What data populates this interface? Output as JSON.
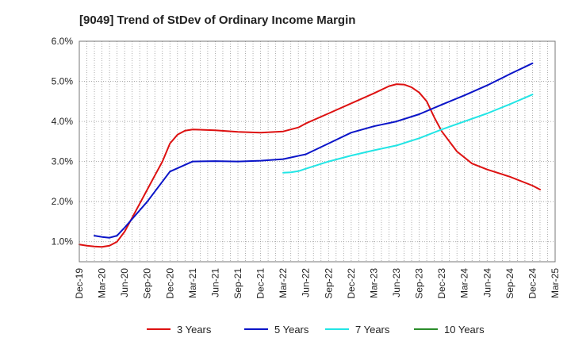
{
  "chart_data": {
    "type": "line",
    "title": "[9049]  Trend of StDev of Ordinary Income Margin",
    "xlabel": "",
    "ylabel": "",
    "x": [
      "Dec-19",
      "Mar-20",
      "Jun-20",
      "Sep-20",
      "Dec-20",
      "Mar-21",
      "Jun-21",
      "Sep-21",
      "Dec-21",
      "Mar-22",
      "Jun-22",
      "Sep-22",
      "Dec-22",
      "Mar-23",
      "Jun-23",
      "Sep-23",
      "Dec-23",
      "Mar-24",
      "Jun-24",
      "Sep-24",
      "Dec-24",
      "Mar-25"
    ],
    "ylim": [
      0.5,
      6.0
    ],
    "yticks": [
      "1.0%",
      "2.0%",
      "3.0%",
      "4.0%",
      "5.0%",
      "6.0%"
    ],
    "ytick_values": [
      1.0,
      2.0,
      3.0,
      4.0,
      5.0,
      6.0
    ],
    "grid": true,
    "legend_position": "bottom",
    "series": [
      {
        "name": "3 Years",
        "color": "#dd1111",
        "points": [
          [
            "Dec-19",
            0.93
          ],
          [
            "Jan-20",
            0.9
          ],
          [
            "Feb-20",
            0.88
          ],
          [
            "Mar-20",
            0.87
          ],
          [
            "Apr-20",
            0.9
          ],
          [
            "May-20",
            1.0
          ],
          [
            "Jun-20",
            1.25
          ],
          [
            "Jul-20",
            1.6
          ],
          [
            "Aug-20",
            1.95
          ],
          [
            "Sep-20",
            2.3
          ],
          [
            "Oct-20",
            2.65
          ],
          [
            "Nov-20",
            3.0
          ],
          [
            "Dec-20",
            3.45
          ],
          [
            "Jan-21",
            3.67
          ],
          [
            "Feb-21",
            3.77
          ],
          [
            "Mar-21",
            3.8
          ],
          [
            "Jun-21",
            3.78
          ],
          [
            "Sep-21",
            3.74
          ],
          [
            "Dec-21",
            3.72
          ],
          [
            "Mar-22",
            3.75
          ],
          [
            "May-22",
            3.85
          ],
          [
            "Jun-22",
            3.95
          ],
          [
            "Sep-22",
            4.2
          ],
          [
            "Dec-22",
            4.45
          ],
          [
            "Mar-23",
            4.7
          ],
          [
            "May-23",
            4.88
          ],
          [
            "Jun-23",
            4.93
          ],
          [
            "Jul-23",
            4.92
          ],
          [
            "Aug-23",
            4.85
          ],
          [
            "Sep-23",
            4.72
          ],
          [
            "Oct-23",
            4.5
          ],
          [
            "Nov-23",
            4.1
          ],
          [
            "Dec-23",
            3.75
          ],
          [
            "Feb-24",
            3.25
          ],
          [
            "Apr-24",
            2.95
          ],
          [
            "Jun-24",
            2.8
          ],
          [
            "Sep-24",
            2.62
          ],
          [
            "Dec-24",
            2.4
          ],
          [
            "Jan-25",
            2.3
          ]
        ]
      },
      {
        "name": "5 Years",
        "color": "#0a14c8",
        "points": [
          [
            "Feb-20",
            1.15
          ],
          [
            "Mar-20",
            1.12
          ],
          [
            "Apr-20",
            1.1
          ],
          [
            "May-20",
            1.15
          ],
          [
            "Jun-20",
            1.35
          ],
          [
            "Sep-20",
            2.0
          ],
          [
            "Dec-20",
            2.75
          ],
          [
            "Mar-21",
            3.0
          ],
          [
            "Jun-21",
            3.01
          ],
          [
            "Sep-21",
            3.0
          ],
          [
            "Dec-21",
            3.02
          ],
          [
            "Mar-22",
            3.06
          ],
          [
            "Jun-22",
            3.18
          ],
          [
            "Sep-22",
            3.45
          ],
          [
            "Dec-22",
            3.72
          ],
          [
            "Mar-23",
            3.88
          ],
          [
            "Jun-23",
            4.0
          ],
          [
            "Sep-23",
            4.18
          ],
          [
            "Dec-23",
            4.42
          ],
          [
            "Mar-24",
            4.65
          ],
          [
            "Jun-24",
            4.9
          ],
          [
            "Sep-24",
            5.18
          ],
          [
            "Dec-24",
            5.45
          ]
        ]
      },
      {
        "name": "7 Years",
        "color": "#22e5e5",
        "points": [
          [
            "Mar-22",
            2.72
          ],
          [
            "Apr-22",
            2.73
          ],
          [
            "May-22",
            2.76
          ],
          [
            "Jun-22",
            2.82
          ],
          [
            "Sep-22",
            3.0
          ],
          [
            "Dec-22",
            3.15
          ],
          [
            "Mar-23",
            3.28
          ],
          [
            "Jun-23",
            3.4
          ],
          [
            "Sep-23",
            3.58
          ],
          [
            "Dec-23",
            3.8
          ],
          [
            "Mar-24",
            4.0
          ],
          [
            "Jun-24",
            4.2
          ],
          [
            "Sep-24",
            4.43
          ],
          [
            "Dec-24",
            4.67
          ]
        ]
      },
      {
        "name": "10 Years",
        "color": "#2a8c2a",
        "points": []
      }
    ]
  }
}
